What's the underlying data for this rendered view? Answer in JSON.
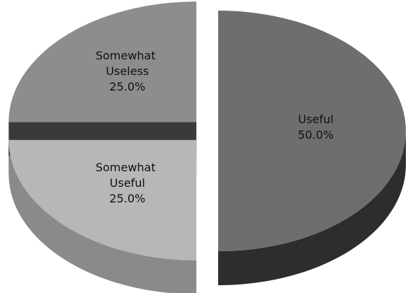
{
  "chart_data": {
    "type": "pie",
    "categories": [
      "Useful",
      "Somewhat Useful",
      "Somewhat Useless"
    ],
    "values": [
      50,
      25,
      25
    ],
    "value_labels": [
      "50.0%",
      "25.0%",
      "25.0%"
    ],
    "colors": [
      "#6e6e6e",
      "#b7b7b7",
      "#8d8d8d"
    ],
    "side_colors": [
      "#2d2d2d",
      "#8a8a8a",
      "#3a3a3a"
    ]
  }
}
